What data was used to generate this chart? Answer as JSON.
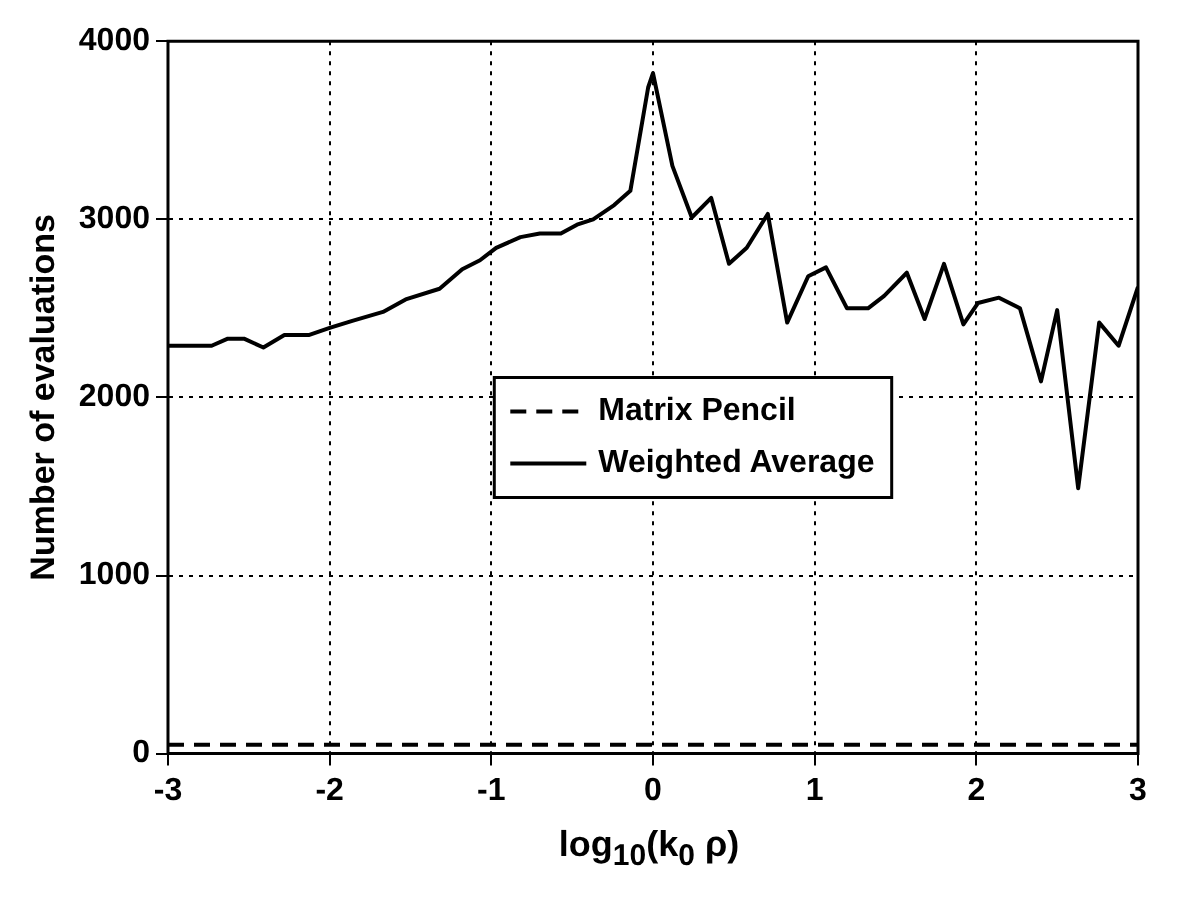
{
  "chart_data": {
    "type": "line",
    "xlabel": "log$_{10}$(k$_{0}$ ρ)",
    "ylabel": "Number of evaluations",
    "xlim": [
      -3,
      3
    ],
    "xticks": [
      -3,
      -2,
      -1,
      0,
      1,
      2,
      3
    ],
    "ylim": [
      0,
      4000
    ],
    "yticks": [
      0,
      1000,
      2000,
      3000,
      4000
    ],
    "grid": true,
    "legend": "center",
    "marker": "none",
    "series": [
      {
        "name": "Matrix Pencil",
        "color": "#000000",
        "line_style": "dashed",
        "x": [
          -3,
          3
        ],
        "values": [
          50,
          50
        ]
      },
      {
        "name": "Weighted Average",
        "color": "#000000",
        "line_style": "solid",
        "x": [
          -3,
          -2.73,
          -2.63,
          -2.53,
          -2.41,
          -2.28,
          -2.13,
          -2.0,
          -1.86,
          -1.67,
          -1.53,
          -1.32,
          -1.18,
          -1.07,
          -0.97,
          -0.82,
          -0.7,
          -0.57,
          -0.47,
          -0.37,
          -0.24,
          -0.14,
          -0.03,
          0,
          0.12,
          0.24,
          0.36,
          0.47,
          0.58,
          0.71,
          0.83,
          0.96,
          1.07,
          1.2,
          1.33,
          1.43,
          1.57,
          1.68,
          1.8,
          1.92,
          2.01,
          2.14,
          2.27,
          2.4,
          2.5,
          2.63,
          2.76,
          2.88,
          3
        ],
        "values": [
          2290,
          2290,
          2330,
          2330,
          2280,
          2350,
          2350,
          2390,
          2430,
          2480,
          2550,
          2610,
          2720,
          2770,
          2840,
          2900,
          2920,
          2920,
          2970,
          3000,
          3080,
          3160,
          3740,
          3820,
          3300,
          3010,
          3120,
          2750,
          2840,
          3030,
          2420,
          2680,
          2730,
          2500,
          2500,
          2570,
          2700,
          2440,
          2750,
          2410,
          2530,
          2560,
          2500,
          2090,
          2490,
          1490,
          2420,
          2290,
          2620
        ]
      }
    ]
  }
}
